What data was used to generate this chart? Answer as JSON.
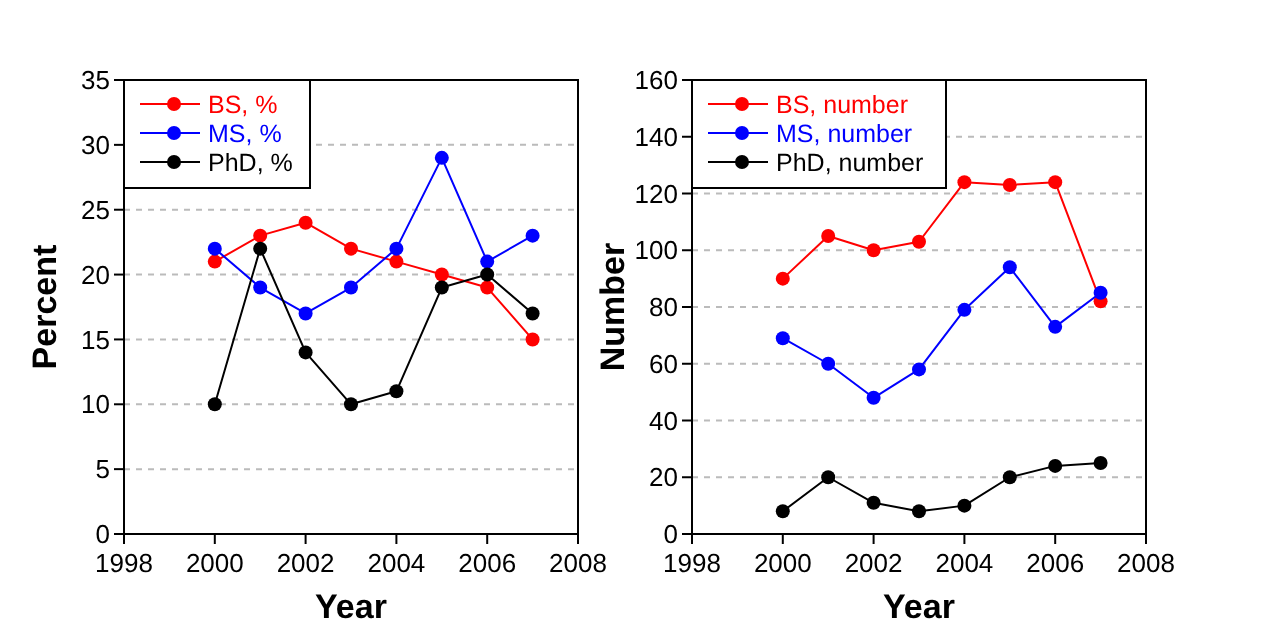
{
  "chart_data": [
    {
      "type": "line",
      "xlabel": "Year",
      "ylabel": "Percent",
      "x": [
        2000,
        2001,
        2002,
        2003,
        2004,
        2005,
        2006,
        2007
      ],
      "xlim": [
        1998,
        2008
      ],
      "xticks": [
        1998,
        2000,
        2002,
        2004,
        2006,
        2008
      ],
      "ylim": [
        0,
        35
      ],
      "yticks": [
        0,
        5,
        10,
        15,
        20,
        25,
        30,
        35
      ],
      "grid": "y",
      "legend": "top left",
      "marker": "circle",
      "series": [
        {
          "name": "BS, %",
          "color": "#ff0000",
          "values": [
            21,
            23,
            24,
            22,
            21,
            20,
            19,
            15
          ]
        },
        {
          "name": "MS, %",
          "color": "#0000ff",
          "values": [
            22,
            19,
            17,
            19,
            22,
            29,
            21,
            23
          ]
        },
        {
          "name": "PhD, %",
          "color": "#000000",
          "values": [
            10,
            22,
            14,
            10,
            11,
            19,
            20,
            17
          ]
        }
      ]
    },
    {
      "type": "line",
      "xlabel": "Year",
      "ylabel": "Number",
      "x": [
        2000,
        2001,
        2002,
        2003,
        2004,
        2005,
        2006,
        2007
      ],
      "xlim": [
        1998,
        2008
      ],
      "xticks": [
        1998,
        2000,
        2002,
        2004,
        2006,
        2008
      ],
      "ylim": [
        0,
        160
      ],
      "yticks": [
        0,
        20,
        40,
        60,
        80,
        100,
        120,
        140,
        160
      ],
      "grid": "y",
      "legend": "top left",
      "marker": "circle",
      "series": [
        {
          "name": "BS, number",
          "color": "#ff0000",
          "values": [
            90,
            105,
            100,
            103,
            124,
            123,
            124,
            82
          ]
        },
        {
          "name": "MS, number",
          "color": "#0000ff",
          "values": [
            69,
            60,
            48,
            58,
            79,
            94,
            73,
            85
          ]
        },
        {
          "name": "PhD, number",
          "color": "#000000",
          "values": [
            8,
            20,
            11,
            8,
            10,
            20,
            24,
            25
          ]
        }
      ]
    }
  ]
}
